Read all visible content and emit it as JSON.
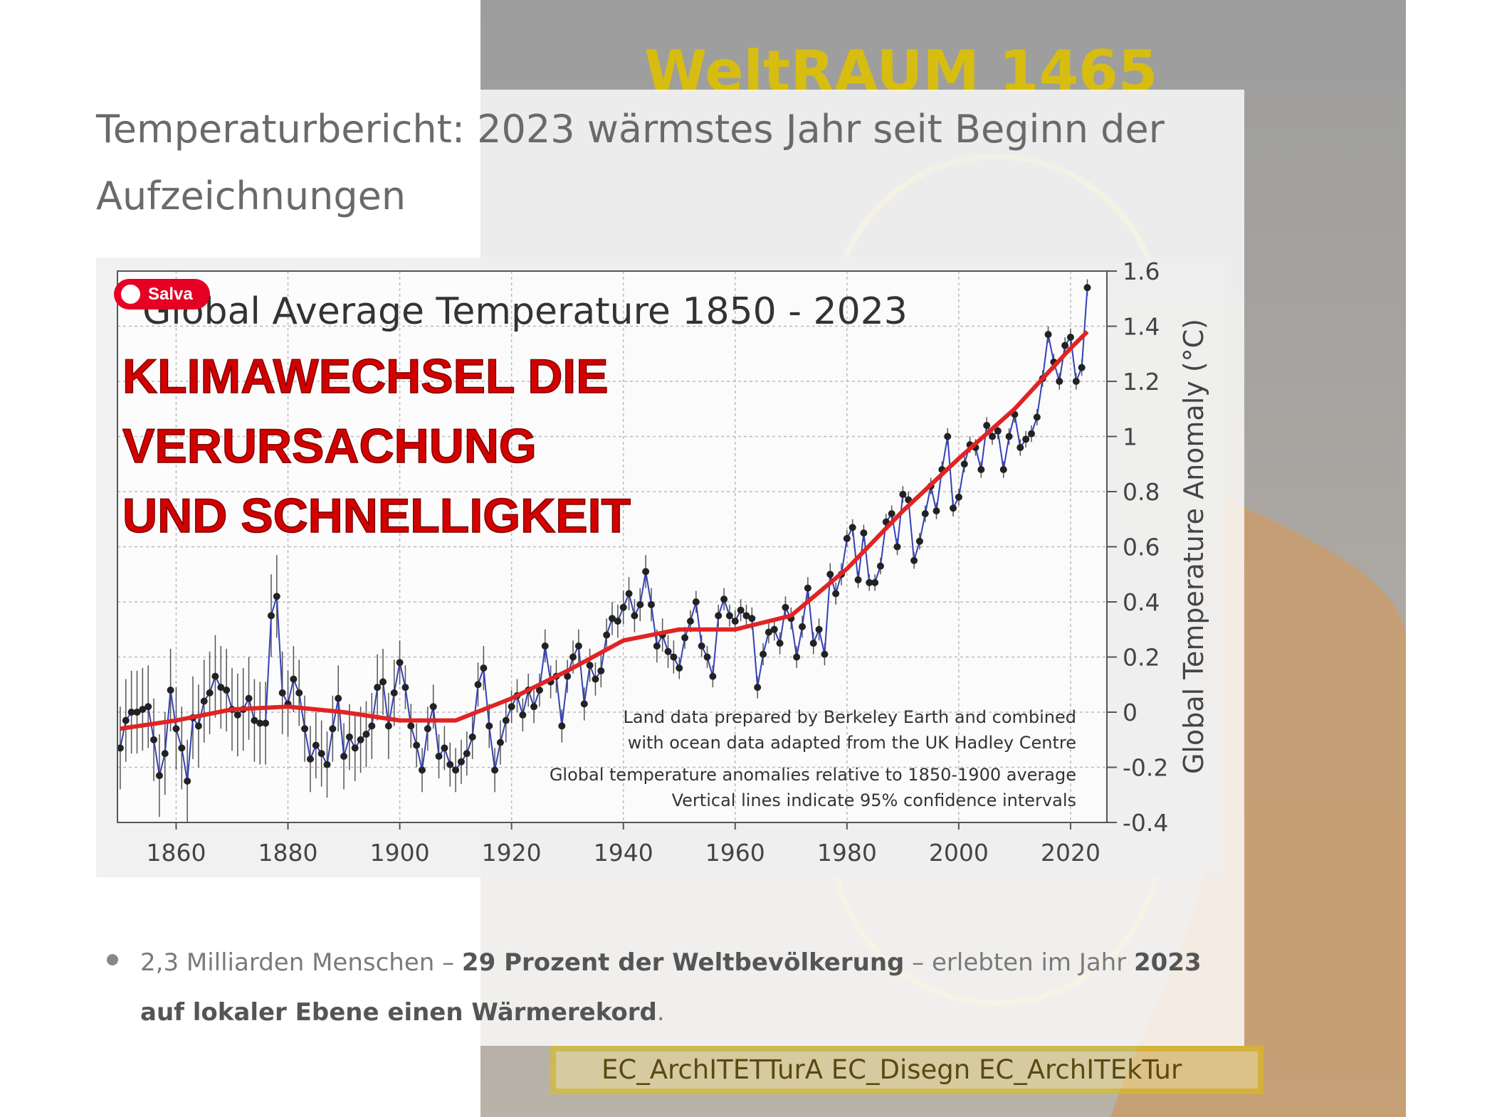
{
  "page": {
    "heading": "Temperaturbericht: 2023 wärmstes Jahr seit Beginn der Aufzeichnungen",
    "save_button": "Salva",
    "overlay_lines": [
      "KLIMAWECHSEL DIE",
      "VERURSACHUNG",
      "UND SCHNELLIGKEIT"
    ],
    "watermark_top": "WeltRAUM 1465",
    "watermark_bottom": "EC_ArchITETTurA EC_Disegn EC_ArchITEkTur",
    "bullet": [
      {
        "text": "2,3 Milliarden Menschen – ",
        "bold": false
      },
      {
        "text": "29 Prozent der Weltbevölkerung",
        "bold": true
      },
      {
        "text": " – erlebten im Jahr ",
        "bold": false
      },
      {
        "text": "2023 auf lokaler Ebene einen Wärmerekord",
        "bold": true
      },
      {
        "text": ".",
        "bold": false
      }
    ]
  },
  "chart_data": {
    "type": "line",
    "title": "Global Average Temperature 1850 - 2023",
    "y_label": "Global Temperature Anomaly (°C)",
    "annotations": [
      "Land data prepared by Berkeley Earth and combined",
      "with ocean data adapted from the UK Hadley Centre",
      "Global temperature anomalies relative to 1850-1900 average",
      "Vertical lines indicate 95% confidence intervals"
    ],
    "x": [
      1850,
      1851,
      1852,
      1853,
      1854,
      1855,
      1856,
      1857,
      1858,
      1859,
      1860,
      1861,
      1862,
      1863,
      1864,
      1865,
      1866,
      1867,
      1868,
      1869,
      1870,
      1871,
      1872,
      1873,
      1874,
      1875,
      1876,
      1877,
      1878,
      1879,
      1880,
      1881,
      1882,
      1883,
      1884,
      1885,
      1886,
      1887,
      1888,
      1889,
      1890,
      1891,
      1892,
      1893,
      1894,
      1895,
      1896,
      1897,
      1898,
      1899,
      1900,
      1901,
      1902,
      1903,
      1904,
      1905,
      1906,
      1907,
      1908,
      1909,
      1910,
      1911,
      1912,
      1913,
      1914,
      1915,
      1916,
      1917,
      1918,
      1919,
      1920,
      1921,
      1922,
      1923,
      1924,
      1925,
      1926,
      1927,
      1928,
      1929,
      1930,
      1931,
      1932,
      1933,
      1934,
      1935,
      1936,
      1937,
      1938,
      1939,
      1940,
      1941,
      1942,
      1943,
      1944,
      1945,
      1946,
      1947,
      1948,
      1949,
      1950,
      1951,
      1952,
      1953,
      1954,
      1955,
      1956,
      1957,
      1958,
      1959,
      1960,
      1961,
      1962,
      1963,
      1964,
      1965,
      1966,
      1967,
      1968,
      1969,
      1970,
      1971,
      1972,
      1973,
      1974,
      1975,
      1976,
      1977,
      1978,
      1979,
      1980,
      1981,
      1982,
      1983,
      1984,
      1985,
      1986,
      1987,
      1988,
      1989,
      1990,
      1991,
      1992,
      1993,
      1994,
      1995,
      1996,
      1997,
      1998,
      1999,
      2000,
      2001,
      2002,
      2003,
      2004,
      2005,
      2006,
      2007,
      2008,
      2009,
      2010,
      2011,
      2012,
      2013,
      2014,
      2015,
      2016,
      2017,
      2018,
      2019,
      2020,
      2021,
      2022,
      2023
    ],
    "series": [
      {
        "color": "#3340b8",
        "marker_color": "#222222",
        "error_color": "#555555",
        "values": [
          -0.13,
          -0.03,
          0,
          0,
          0.01,
          0.02,
          -0.1,
          -0.23,
          -0.15,
          0.08,
          -0.06,
          -0.13,
          -0.25,
          -0.02,
          -0.05,
          0.04,
          0.07,
          0.13,
          0.09,
          0.08,
          0.01,
          -0.01,
          0.01,
          0.05,
          -0.03,
          -0.04,
          -0.04,
          0.35,
          0.42,
          0.07,
          0.03,
          0.12,
          0.07,
          -0.06,
          -0.17,
          -0.12,
          -0.15,
          -0.19,
          -0.06,
          0.05,
          -0.16,
          -0.09,
          -0.13,
          -0.1,
          -0.08,
          -0.05,
          0.09,
          0.11,
          -0.05,
          0.07,
          0.18,
          0.09,
          -0.05,
          -0.12,
          -0.21,
          -0.06,
          0.02,
          -0.16,
          -0.13,
          -0.19,
          -0.21,
          -0.18,
          -0.15,
          -0.09,
          0.1,
          0.16,
          -0.05,
          -0.21,
          -0.11,
          -0.03,
          0.02,
          0.06,
          -0.01,
          0.08,
          0.02,
          0.08,
          0.24,
          0.11,
          0.13,
          -0.05,
          0.13,
          0.2,
          0.24,
          0.03,
          0.17,
          0.12,
          0.15,
          0.28,
          0.34,
          0.33,
          0.38,
          0.43,
          0.35,
          0.39,
          0.51,
          0.39,
          0.24,
          0.28,
          0.22,
          0.2,
          0.16,
          0.27,
          0.33,
          0.4,
          0.24,
          0.2,
          0.13,
          0.35,
          0.41,
          0.35,
          0.33,
          0.37,
          0.35,
          0.34,
          0.09,
          0.21,
          0.29,
          0.3,
          0.25,
          0.38,
          0.34,
          0.2,
          0.31,
          0.45,
          0.25,
          0.3,
          0.21,
          0.5,
          0.43,
          0.5,
          0.63,
          0.67,
          0.48,
          0.65,
          0.47,
          0.47,
          0.53,
          0.69,
          0.72,
          0.6,
          0.79,
          0.77,
          0.55,
          0.62,
          0.72,
          0.82,
          0.73,
          0.88,
          1.0,
          0.74,
          0.78,
          0.9,
          0.97,
          0.96,
          0.88,
          1.04,
          1.0,
          1.02,
          0.88,
          1.0,
          1.08,
          0.96,
          0.99,
          1.01,
          1.07,
          1.21,
          1.37,
          1.27,
          1.2,
          1.33,
          1.36,
          1.2,
          1.25,
          1.54
        ],
        "errors": [
          0.15,
          0.15,
          0.15,
          0.15,
          0.15,
          0.15,
          0.15,
          0.15,
          0.15,
          0.15,
          0.15,
          0.15,
          0.15,
          0.15,
          0.15,
          0.15,
          0.15,
          0.15,
          0.15,
          0.15,
          0.15,
          0.15,
          0.15,
          0.15,
          0.15,
          0.15,
          0.15,
          0.15,
          0.15,
          0.15,
          0.12,
          0.12,
          0.12,
          0.12,
          0.12,
          0.12,
          0.12,
          0.12,
          0.12,
          0.12,
          0.12,
          0.12,
          0.12,
          0.12,
          0.12,
          0.12,
          0.12,
          0.12,
          0.12,
          0.12,
          0.08,
          0.08,
          0.08,
          0.08,
          0.08,
          0.08,
          0.08,
          0.08,
          0.08,
          0.08,
          0.08,
          0.08,
          0.08,
          0.08,
          0.08,
          0.08,
          0.08,
          0.08,
          0.08,
          0.08,
          0.06,
          0.06,
          0.06,
          0.06,
          0.06,
          0.06,
          0.06,
          0.06,
          0.06,
          0.06,
          0.06,
          0.06,
          0.06,
          0.06,
          0.06,
          0.06,
          0.06,
          0.06,
          0.06,
          0.06,
          0.06,
          0.06,
          0.06,
          0.06,
          0.06,
          0.06,
          0.06,
          0.06,
          0.06,
          0.06,
          0.04,
          0.04,
          0.04,
          0.04,
          0.04,
          0.04,
          0.04,
          0.04,
          0.04,
          0.04,
          0.04,
          0.04,
          0.04,
          0.04,
          0.04,
          0.04,
          0.04,
          0.04,
          0.04,
          0.04,
          0.04,
          0.04,
          0.04,
          0.04,
          0.04,
          0.04,
          0.04,
          0.04,
          0.04,
          0.04,
          0.03,
          0.03,
          0.03,
          0.03,
          0.03,
          0.03,
          0.03,
          0.03,
          0.03,
          0.03,
          0.03,
          0.03,
          0.03,
          0.03,
          0.03,
          0.03,
          0.03,
          0.03,
          0.03,
          0.03,
          0.03,
          0.03,
          0.03,
          0.03,
          0.03,
          0.03,
          0.03,
          0.03,
          0.03,
          0.03,
          0.03,
          0.03,
          0.03,
          0.03,
          0.03,
          0.03,
          0.03,
          0.03,
          0.03,
          0.03,
          0.03,
          0.03,
          0.03,
          0.03
        ]
      },
      {
        "color": "#e02424",
        "x": [
          1850,
          1860,
          1870,
          1880,
          1890,
          1900,
          1910,
          1920,
          1930,
          1940,
          1950,
          1960,
          1970,
          1980,
          1990,
          2000,
          2010,
          2020,
          2023
        ],
        "values": [
          -0.06,
          -0.03,
          0.01,
          0.02,
          0,
          -0.03,
          -0.03,
          0.05,
          0.15,
          0.26,
          0.3,
          0.3,
          0.35,
          0.52,
          0.73,
          0.92,
          1.1,
          1.32,
          1.38
        ]
      }
    ],
    "xlim": [
      1849.5,
      2026.5
    ],
    "ylim": [
      -0.4,
      1.6
    ],
    "xticks": [
      1860,
      1880,
      1900,
      1920,
      1940,
      1960,
      1980,
      2000,
      2020
    ],
    "yticks": [
      -0.4,
      -0.2,
      0,
      0.2,
      0.4,
      0.6,
      0.8,
      1,
      1.2,
      1.4,
      1.6
    ],
    "grid": true,
    "y_axis_side": "right"
  }
}
